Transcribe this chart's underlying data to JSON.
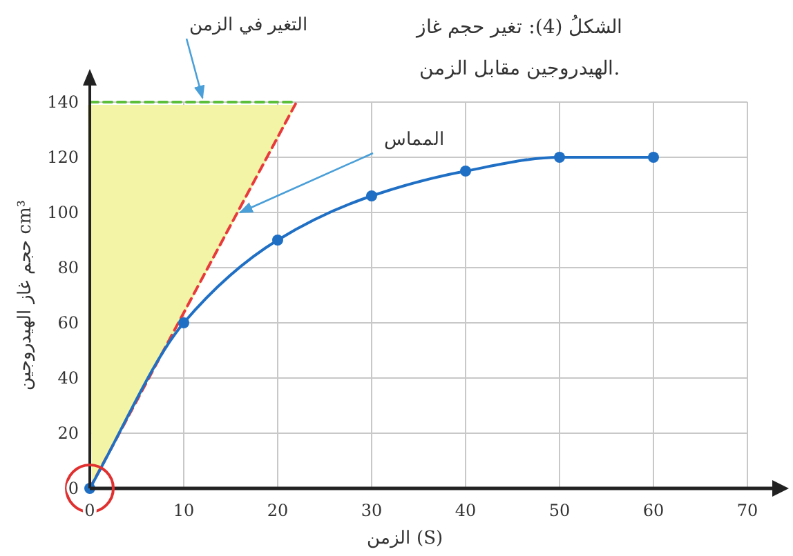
{
  "chart_data": {
    "type": "line",
    "title": "الشكلُ (4): تغير حجم غاز\nالهيدروجين مقابل الزمن.",
    "xlabel": "الزمن (S)",
    "ylabel": "حجم غاز الهيدروجين cm³",
    "annotations": [
      {
        "text": "التغير في الزمن",
        "x": 12,
        "y": 140
      },
      {
        "text": "المماس",
        "x": 16,
        "y": 100
      }
    ],
    "x": [
      0,
      10,
      20,
      22,
      30,
      40,
      50,
      60
    ],
    "series": [
      {
        "values": [
          140,
          null,
          null,
          140,
          null,
          null,
          null,
          null
        ],
        "color": "#5cbf3a",
        "line_style": "dashed"
      },
      {
        "values": [
          0,
          null,
          null,
          140,
          null,
          null,
          null,
          null
        ],
        "color": "#e83a3a",
        "line_style": "dashed"
      },
      {
        "values": [
          0,
          60,
          90,
          null,
          106,
          115,
          120,
          120
        ],
        "color": "#1f6fc5",
        "line_style": "solid",
        "marker": "circle"
      }
    ],
    "xlim": [
      0,
      70
    ],
    "ylim": [
      0,
      140
    ],
    "xticks": [
      0,
      10,
      20,
      30,
      40,
      50,
      60,
      70
    ],
    "yticks": [
      0,
      20,
      40,
      60,
      80,
      100,
      120,
      140
    ],
    "grid": true
  }
}
